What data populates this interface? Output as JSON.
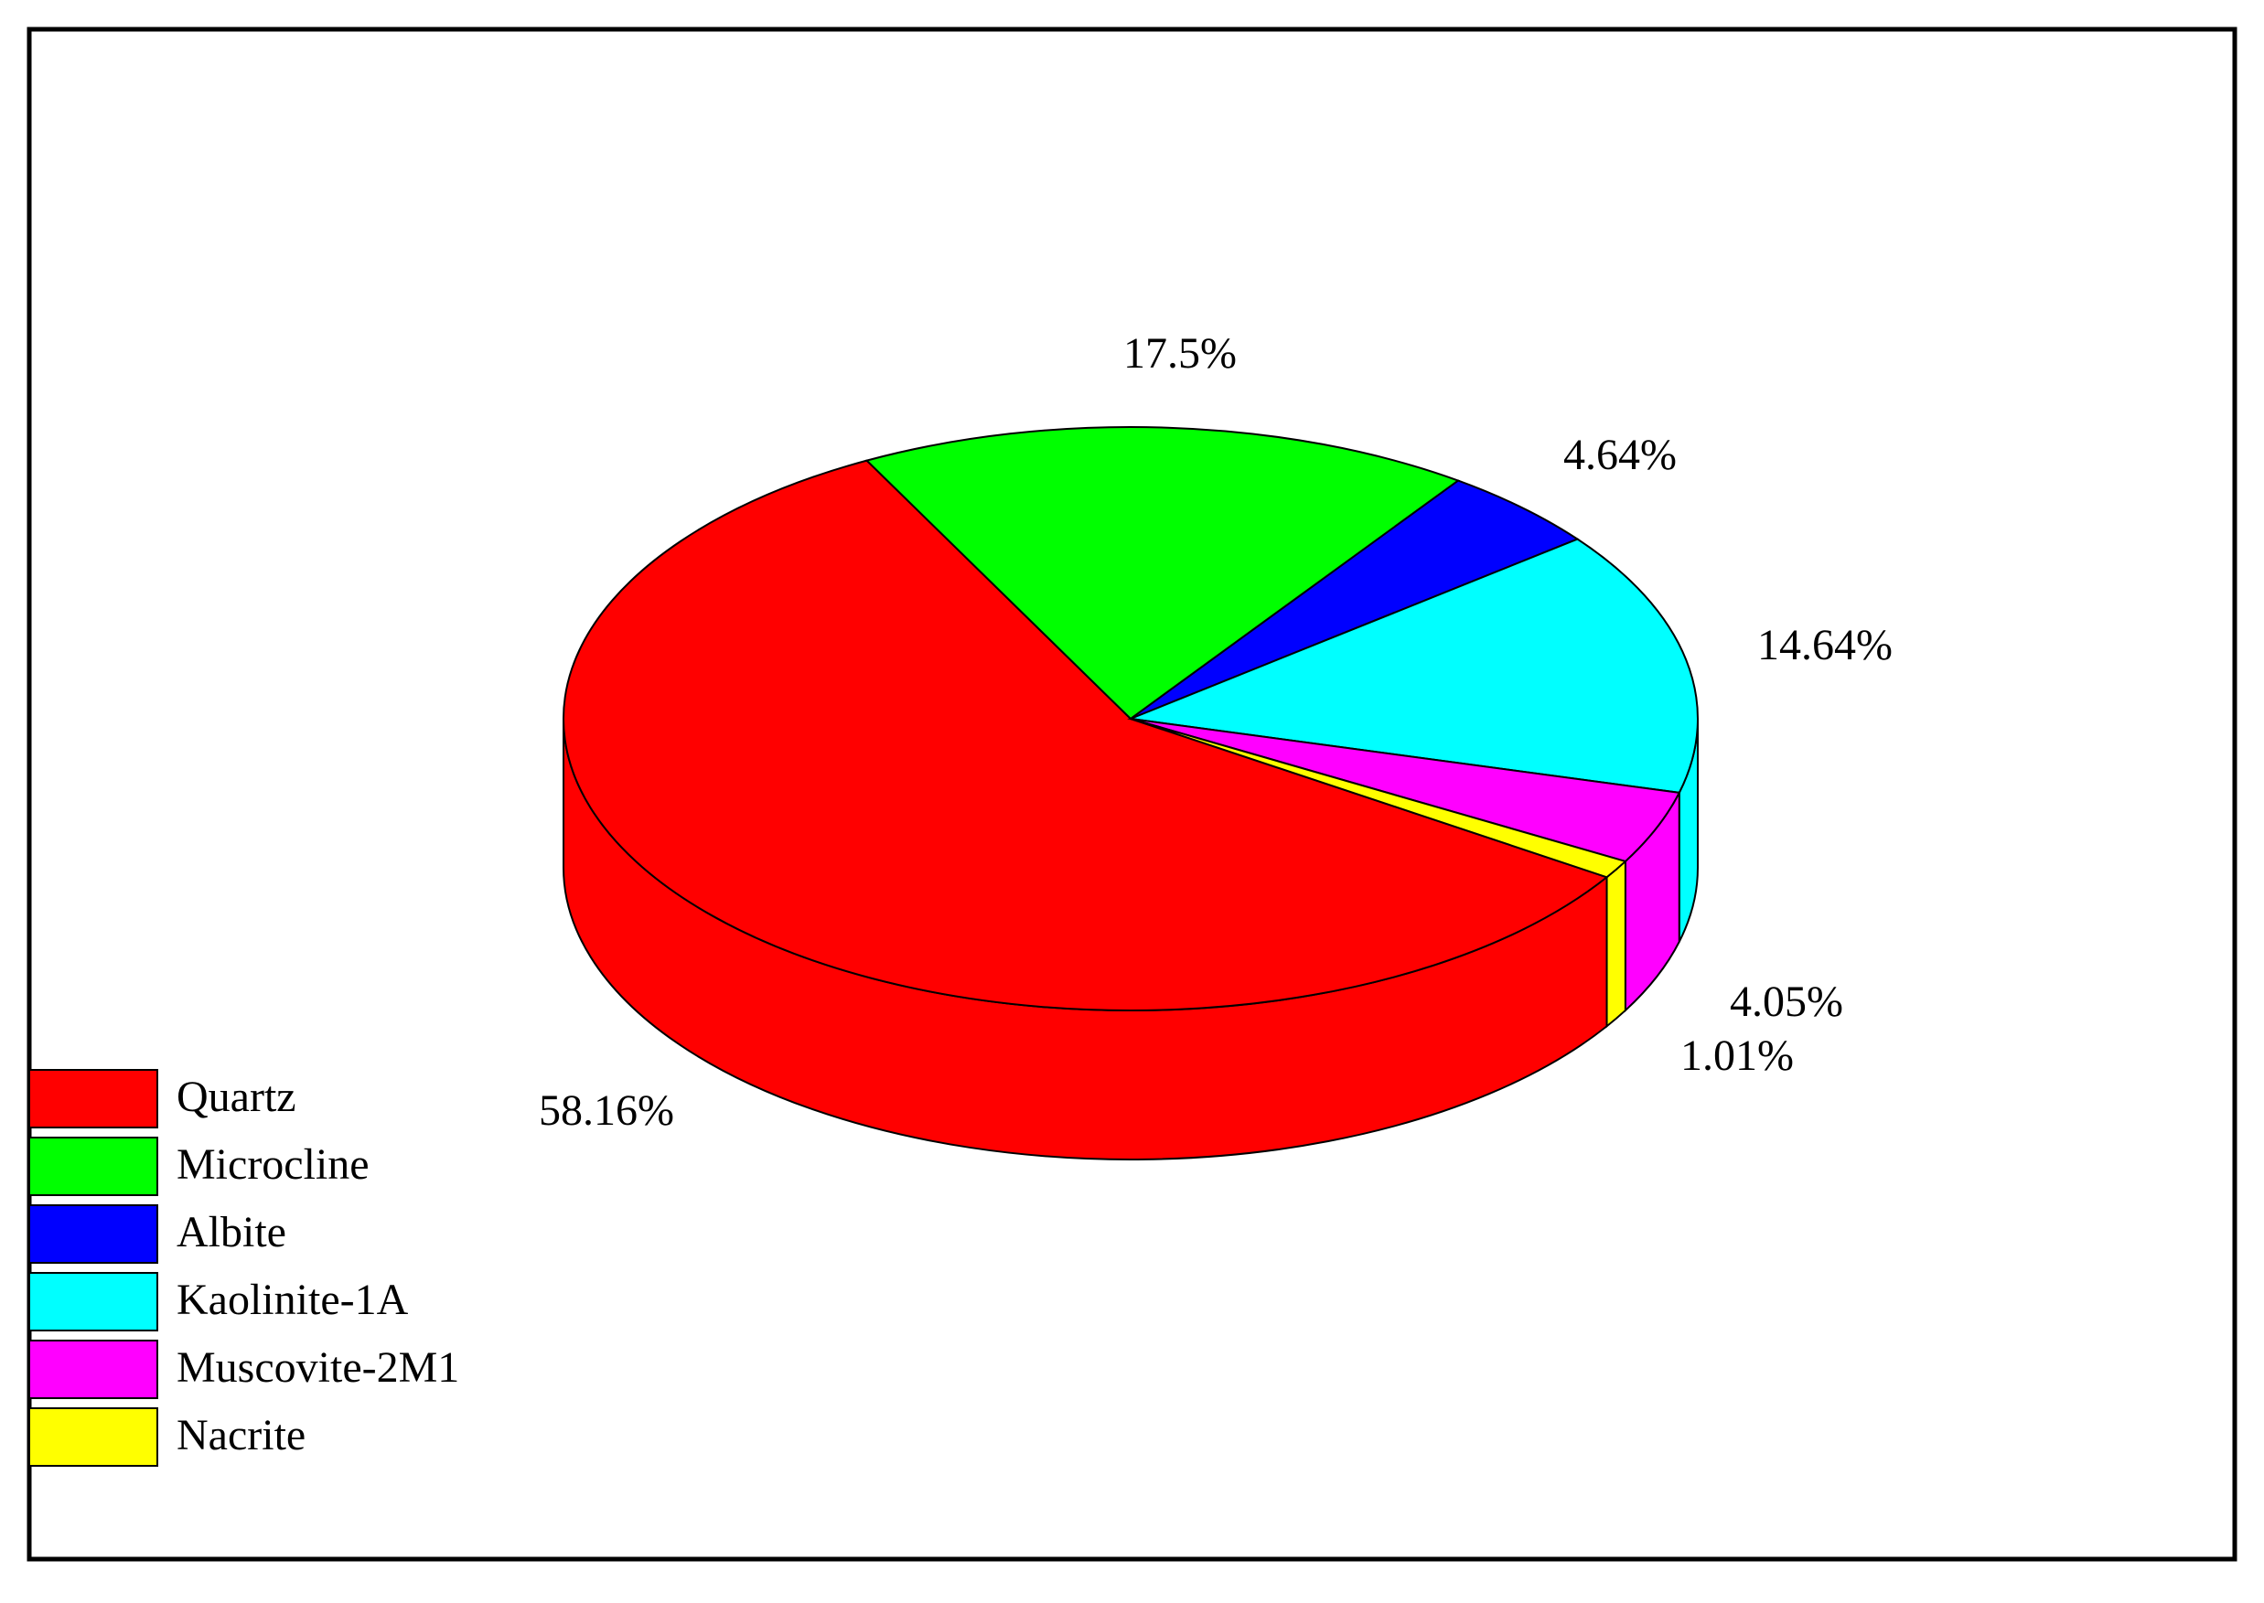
{
  "chart_data": {
    "type": "pie",
    "categories": [
      "Quartz",
      "Microcline",
      "Albite",
      "Kaolinite-1A",
      "Muscovite-2M1",
      "Nacrite"
    ],
    "values": [
      58.16,
      17.5,
      4.64,
      14.64,
      4.05,
      1.01
    ],
    "value_labels": [
      "58.16%",
      "17.5%",
      "4.64%",
      "14.64%",
      "4.05%",
      "1.01%"
    ],
    "colors": [
      "#ff0000",
      "#00ff00",
      "#0000ff",
      "#00ffff",
      "#ff00ff",
      "#ffff00"
    ],
    "legend": "lower left"
  }
}
